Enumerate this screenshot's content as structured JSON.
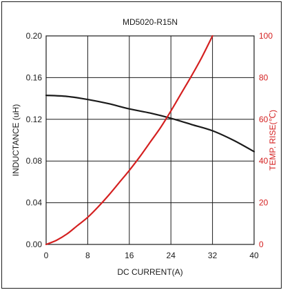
{
  "chart_data": {
    "type": "line",
    "title": "MD5020-R15N",
    "xlabel": "DC CURRENT(A)",
    "ylabel": "INDUCTANCE (uH)",
    "y2label": "TEMP. RISE(℃)",
    "xlim": [
      0,
      40
    ],
    "ylim": [
      0,
      0.2
    ],
    "y2lim": [
      0,
      100
    ],
    "x_ticks": [
      "0",
      "8",
      "16",
      "24",
      "32",
      "40"
    ],
    "y_ticks": [
      "0.00",
      "0.04",
      "0.08",
      "0.12",
      "0.16",
      "0.20"
    ],
    "y2_ticks": [
      "0",
      "20",
      "40",
      "60",
      "80",
      "100"
    ],
    "grid": true,
    "series": [
      {
        "axis": "left",
        "color": "#1a1a1a",
        "x": [
          0,
          4,
          8,
          12,
          16,
          20,
          24,
          28,
          32,
          36,
          40
        ],
        "y": [
          0.143,
          0.142,
          0.139,
          0.135,
          0.13,
          0.126,
          0.121,
          0.115,
          0.109,
          0.1,
          0.089
        ]
      },
      {
        "axis": "right",
        "color": "#d42020",
        "x": [
          0,
          2,
          4,
          6,
          8,
          10,
          12,
          14,
          16,
          18,
          20,
          22,
          24,
          26,
          28,
          30,
          32
        ],
        "y": [
          0,
          2,
          5,
          9,
          13,
          18,
          23.5,
          29.5,
          35.5,
          42,
          49,
          56,
          64,
          72.5,
          81,
          90,
          100
        ]
      }
    ]
  }
}
